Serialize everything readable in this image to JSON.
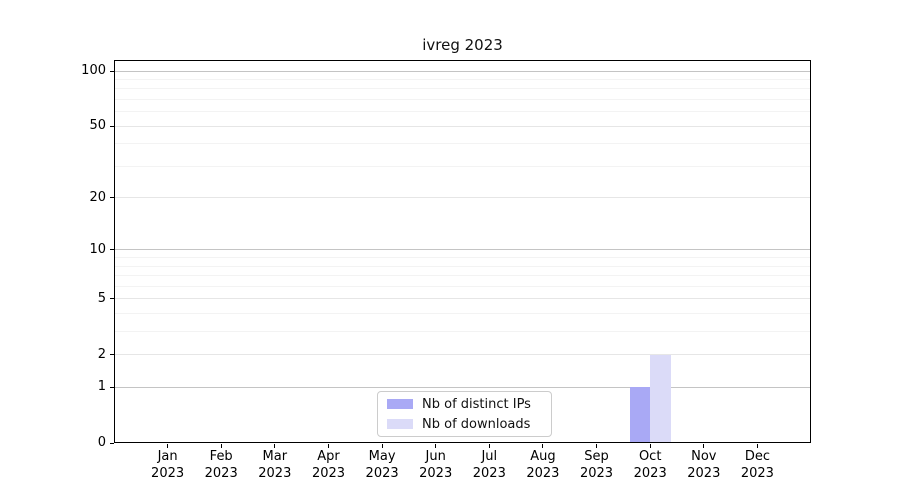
{
  "chart_data": {
    "type": "bar",
    "title": "ivreg 2023",
    "categories": [
      "Jan",
      "Feb",
      "Mar",
      "Apr",
      "May",
      "Jun",
      "Jul",
      "Aug",
      "Sep",
      "Oct",
      "Nov",
      "Dec"
    ],
    "x_second_line": "2023",
    "series": [
      {
        "name": "Nb of distinct IPs",
        "color": "#a9a9f5",
        "values": [
          0,
          0,
          0,
          0,
          0,
          0,
          0,
          0,
          0,
          1,
          0,
          0
        ]
      },
      {
        "name": "Nb of downloads",
        "color": "#dbdbf8",
        "values": [
          0,
          0,
          0,
          0,
          0,
          0,
          0,
          0,
          0,
          2,
          0,
          0
        ]
      }
    ],
    "y_axis": {
      "scale": "log10(1+y)",
      "ylim": [
        0,
        115
      ],
      "ticks": [
        {
          "value": 0,
          "label": "0"
        },
        {
          "value": 1,
          "label": "1"
        },
        {
          "value": 2,
          "label": "2"
        },
        {
          "value": 5,
          "label": "5"
        },
        {
          "value": 10,
          "label": "10"
        },
        {
          "value": 20,
          "label": "20"
        },
        {
          "value": 50,
          "label": "50"
        },
        {
          "value": 100,
          "label": "100"
        }
      ],
      "gridlines_major": [
        1,
        10,
        100
      ],
      "gridlines_mid": [
        2,
        5,
        20,
        50
      ],
      "gridlines_minor": [
        3,
        4,
        6,
        7,
        8,
        9,
        30,
        40,
        60,
        70,
        80,
        90
      ]
    },
    "grid": true,
    "legend_position": "lower center",
    "xlabel": "",
    "ylabel": ""
  },
  "legend": {
    "items": [
      {
        "label": "Nb of distinct IPs"
      },
      {
        "label": "Nb of downloads"
      }
    ]
  },
  "colors": {
    "spine": "#000000",
    "grid_major": "#c4c4c4",
    "grid_mid": "#e6e6e6",
    "grid_minor": "#f3f3f3",
    "background": "#ffffff"
  }
}
